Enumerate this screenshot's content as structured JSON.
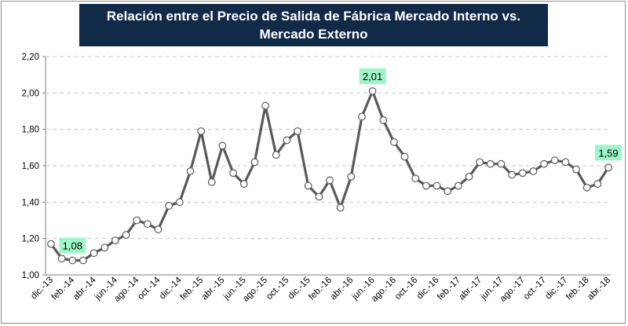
{
  "title": "Relación  entre el Precio de Salida de Fábrica Mercado Interno vs. Mercado Externo",
  "colors": {
    "title_bg": "#112a47",
    "line": "#595959",
    "marker_fill": "#ffffff",
    "label_bg": "#9ff5c8",
    "grid": "#c8c8c8"
  },
  "chart_data": {
    "type": "line",
    "title": "Relación  entre el Precio de Salida de Fábrica Mercado Interno vs. Mercado Externo",
    "xlabel": "",
    "ylabel": "",
    "ylim": [
      1.0,
      2.2
    ],
    "y_ticks": [
      "1,00",
      "1,20",
      "1,40",
      "1,60",
      "1,80",
      "2,00",
      "2,20"
    ],
    "grid": "horizontal dashed",
    "x_tick_labels": [
      "dic.-13",
      "feb.-14",
      "abr.-14",
      "jun.-14",
      "ago.-14",
      "oct.-14",
      "dic.-14",
      "feb.-15",
      "abr.-15",
      "jun.-15",
      "ago.-15",
      "oct.-15",
      "dic.-15",
      "feb.-16",
      "abr.-16",
      "jun.-16",
      "ago.-16",
      "oct.-16",
      "dic.-16",
      "feb.-17",
      "abr.-17",
      "jun.-17",
      "ago.-17",
      "oct.-17",
      "dic.-17",
      "feb.-18",
      "abr.-18"
    ],
    "values": [
      1.17,
      1.09,
      1.08,
      1.08,
      1.12,
      1.15,
      1.19,
      1.22,
      1.3,
      1.28,
      1.25,
      1.38,
      1.4,
      1.57,
      1.79,
      1.51,
      1.71,
      1.56,
      1.5,
      1.62,
      1.93,
      1.66,
      1.74,
      1.79,
      1.49,
      1.43,
      1.52,
      1.37,
      1.54,
      1.87,
      2.01,
      1.85,
      1.73,
      1.65,
      1.53,
      1.49,
      1.49,
      1.46,
      1.49,
      1.54,
      1.62,
      1.61,
      1.61,
      1.55,
      1.56,
      1.57,
      1.61,
      1.63,
      1.62,
      1.58,
      1.48,
      1.5,
      1.59
    ],
    "data_labels": [
      {
        "index": 2,
        "text": "1,08"
      },
      {
        "index": 30,
        "text": "2,01"
      },
      {
        "index": 52,
        "text": "1,59"
      }
    ]
  }
}
